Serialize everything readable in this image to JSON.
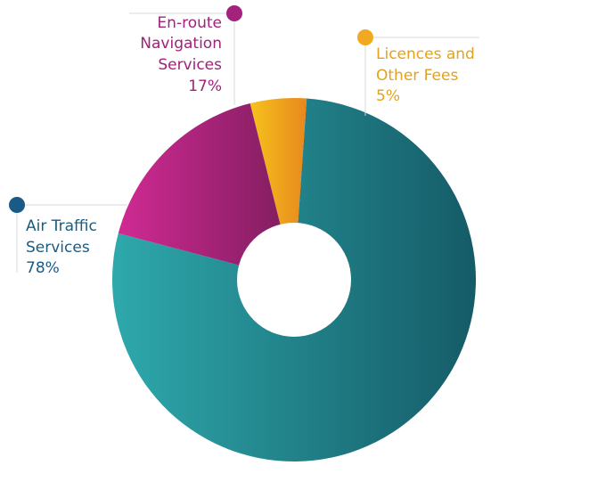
{
  "chart_data": {
    "type": "pie",
    "variant": "donut",
    "title": "",
    "legend": "none",
    "slices": [
      {
        "name": "Licences and Other Fees",
        "label_lines": [
          "Licences and",
          "Other Fees"
        ],
        "value": 5,
        "value_label": "5%",
        "color": "#E9A21A",
        "gradient": [
          "#F6C21C",
          "#E8871E"
        ]
      },
      {
        "name": "Air Traffic Services",
        "label_lines": [
          "Air Traffic",
          "Services"
        ],
        "value": 78,
        "value_label": "78%",
        "color": "#2A8E95",
        "gradient": [
          "#2EA9AC",
          "#155B67"
        ]
      },
      {
        "name": "En-route Navigation Services",
        "label_lines": [
          "En-route",
          "Navigation",
          "Services"
        ],
        "value": 17,
        "value_label": "17%",
        "color": "#B01F7C",
        "gradient": [
          "#D02A93",
          "#7E1D5E"
        ]
      }
    ],
    "label_colors": {
      "Licences and Other Fees": "#E3A21C",
      "Air Traffic Services": "#1A5B82",
      "En-route Navigation Services": "#A2217A"
    },
    "marker_colors": {
      "Licences and Other Fees": "#F0A920",
      "Air Traffic Services": "#195A86",
      "En-route Navigation Services": "#A3227B"
    },
    "leader_line_color": "#D8D8D8"
  }
}
